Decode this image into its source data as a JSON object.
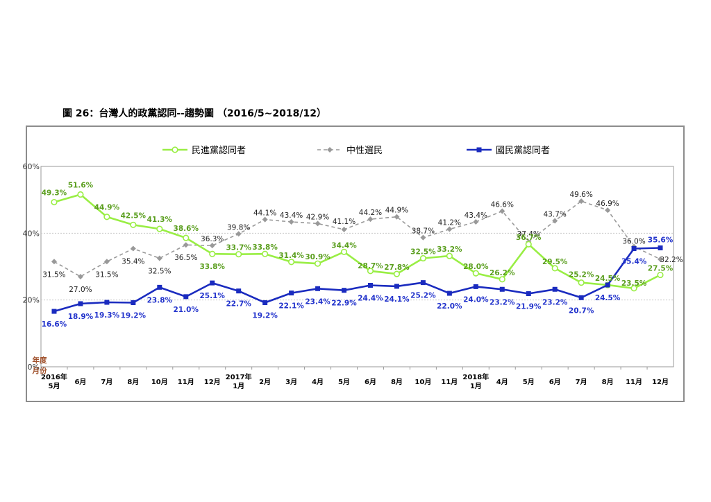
{
  "figure_title": "圖 26：台灣人的政黨認同--趨勢圖 （2016/5~2018/12）",
  "chart_data": {
    "type": "line",
    "title": "圖 26：台灣人的政黨認同--趨勢圖 （2016/5~2018/12）",
    "y_unit": "%",
    "ylim": [
      0,
      60
    ],
    "y_ticks": [
      "0%",
      "20%",
      "40%",
      "60%"
    ],
    "y_axis_caption_top": "年度",
    "y_axis_caption_bottom": "月份",
    "grid": "dotted horizontal at 20% and 40%",
    "legend_position": "top",
    "categories": [
      {
        "line1": "2016年",
        "line2": "5月"
      },
      {
        "line1": "",
        "line2": "6月"
      },
      {
        "line1": "",
        "line2": "7月"
      },
      {
        "line1": "",
        "line2": "8月"
      },
      {
        "line1": "",
        "line2": "10月"
      },
      {
        "line1": "",
        "line2": "11月"
      },
      {
        "line1": "",
        "line2": "12月"
      },
      {
        "line1": "2017年",
        "line2": "1月"
      },
      {
        "line1": "",
        "line2": "2月"
      },
      {
        "line1": "",
        "line2": "3月"
      },
      {
        "line1": "",
        "line2": "4月"
      },
      {
        "line1": "",
        "line2": "5月"
      },
      {
        "line1": "",
        "line2": "6月"
      },
      {
        "line1": "",
        "line2": "8月"
      },
      {
        "line1": "",
        "line2": "10月"
      },
      {
        "line1": "",
        "line2": "11月"
      },
      {
        "line1": "2018年",
        "line2": "1月"
      },
      {
        "line1": "",
        "line2": "4月"
      },
      {
        "line1": "",
        "line2": "5月"
      },
      {
        "line1": "",
        "line2": "6月"
      },
      {
        "line1": "",
        "line2": "7月"
      },
      {
        "line1": "",
        "line2": "8月"
      },
      {
        "line1": "",
        "line2": "11月"
      },
      {
        "line1": "",
        "line2": "12月"
      }
    ],
    "series": [
      {
        "name": "民進黨認同者",
        "color": "#99ee44",
        "label_color": "#5a9e1e",
        "marker": "circle",
        "style": "solid",
        "values": [
          49.3,
          51.6,
          44.9,
          42.5,
          41.3,
          38.6,
          33.8,
          33.7,
          33.8,
          31.4,
          30.9,
          34.4,
          28.7,
          27.8,
          32.5,
          33.2,
          28.0,
          26.2,
          36.7,
          29.5,
          25.2,
          24.5,
          23.5,
          27.5
        ],
        "labels": [
          "49.3%",
          "51.6%",
          "44.9%",
          "42.5%",
          "41.3%",
          "38.6%",
          "33.8%",
          "33.7%",
          "33.8%",
          "31.4%",
          "30.9%",
          "34.4%",
          "28.7%",
          "27.8%",
          "32.5%",
          "33.2%",
          "28.0%",
          "26.2%",
          "36.7%",
          "29.5%",
          "25.2%",
          "24.5%",
          "23.5%",
          "27.5%"
        ]
      },
      {
        "name": "中性選民",
        "color": "#999999",
        "label_color": "#222222",
        "marker": "diamond",
        "style": "dashed",
        "values": [
          31.5,
          27.0,
          31.5,
          35.4,
          32.5,
          36.5,
          36.3,
          39.8,
          44.1,
          43.4,
          42.9,
          41.1,
          44.2,
          44.9,
          38.7,
          41.2,
          43.4,
          46.6,
          37.4,
          43.7,
          49.6,
          46.9,
          36.0,
          32.2
        ],
        "labels": [
          "31.5%",
          "27.0%",
          "31.5%",
          "35.4%",
          "32.5%",
          "36.5%",
          "36.3%",
          "39.8%",
          "44.1%",
          "43.4%",
          "42.9%",
          "41.1%",
          "44.2%",
          "44.9%",
          "38.7%",
          "41.2%",
          "43.4%",
          "46.6%",
          "37.4%",
          "43.7%",
          "49.6%",
          "46.9%",
          "36.0%",
          "32.2%"
        ]
      },
      {
        "name": "國民黨認同者",
        "color": "#1a2bbf",
        "label_color": "#2233cc",
        "marker": "square",
        "style": "solid",
        "values": [
          16.6,
          18.9,
          19.3,
          19.2,
          23.8,
          21.0,
          25.1,
          22.7,
          19.2,
          22.1,
          23.4,
          22.9,
          24.4,
          24.1,
          25.2,
          22.0,
          24.0,
          23.2,
          21.9,
          23.2,
          20.7,
          24.5,
          35.4,
          35.6
        ],
        "labels": [
          "16.6%",
          "18.9%",
          "19.3%",
          "19.2%",
          "23.8%",
          "21.0%",
          "25.1%",
          "22.7%",
          "19.2%",
          "22.1%",
          "23.4%",
          "22.9%",
          "24.4%",
          "24.1%",
          "25.2%",
          "22.0%",
          "24.0%",
          "23.2%",
          "21.9%",
          "23.2%",
          "20.7%",
          "24.5%",
          "35.4%",
          "35.6%"
        ]
      }
    ]
  }
}
